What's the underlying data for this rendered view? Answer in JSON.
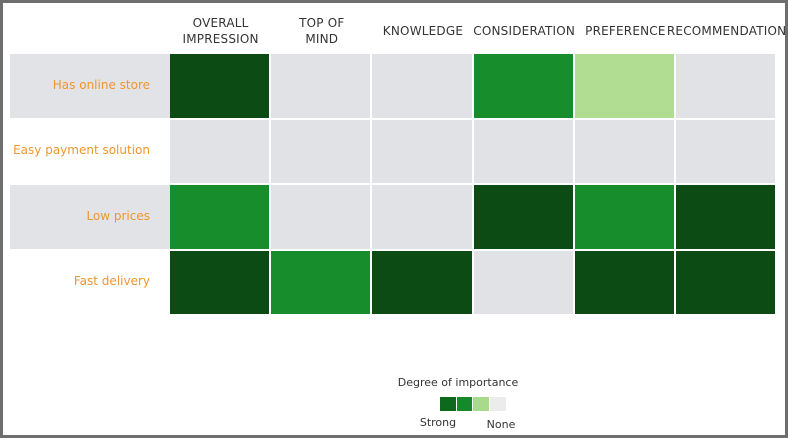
{
  "chart_data": {
    "type": "heatmap",
    "columns": [
      [
        "OVERALL",
        "IMPRESSION"
      ],
      [
        "TOP OF",
        "MIND"
      ],
      [
        "KNOWLEDGE"
      ],
      [
        "CONSIDERATION"
      ],
      [
        "PREFERENCE"
      ],
      [
        "RECOMMENDATION"
      ]
    ],
    "rows": [
      "Has online store",
      "Easy payment solution",
      "Low prices",
      "Fast delivery"
    ],
    "values": [
      [
        3,
        0,
        0,
        2,
        1,
        0
      ],
      [
        0,
        0,
        0,
        0,
        0,
        0
      ],
      [
        2,
        0,
        0,
        3,
        2,
        3
      ],
      [
        3,
        2,
        3,
        0,
        3,
        3
      ]
    ],
    "colorscale": [
      "#e1e2e5",
      "#b0dd92",
      "#178d2b",
      "#0c4b14"
    ],
    "legend": {
      "title": "Degree of importance",
      "high_label": "Strong",
      "low_label": "None",
      "swatches": [
        "#0d6a1d",
        "#16892a",
        "#a9da8b",
        "#ececec"
      ]
    }
  }
}
